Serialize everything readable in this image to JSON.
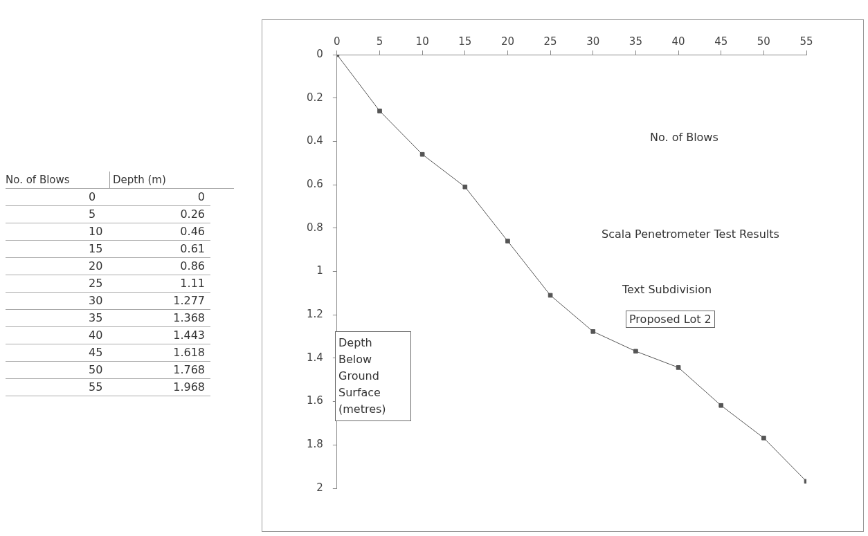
{
  "chart_data": [
    {
      "type": "other",
      "annotations": [
        "No. of Blows",
        "Depth (m)",
        "0 0",
        "5 0.26",
        "10 0.46",
        "15 0.61",
        "20 0.86",
        "25 1.11",
        "30 1.277",
        "35 1.368",
        "40 1.443",
        "45 1.618",
        "50 1.768",
        "55 1.968"
      ]
    },
    {
      "type": "line",
      "xlabel": "No. of Blows",
      "ylabel": "Depth Below Ground Surface (metres)",
      "x": [
        0,
        5,
        10,
        15,
        20,
        25,
        30,
        35,
        40,
        45,
        50,
        55
      ],
      "series": [
        {
          "color": "#555555",
          "values": [
            0,
            0.26,
            0.46,
            0.61,
            0.86,
            1.11,
            1.277,
            1.368,
            1.443,
            1.618,
            1.768,
            1.968
          ]
        }
      ],
      "xlim": [
        0,
        55
      ],
      "xticks": [
        0,
        5,
        10,
        15,
        20,
        25,
        30,
        35,
        40,
        45,
        50,
        55
      ],
      "ylim": [
        2,
        0
      ],
      "yticks": [
        0,
        0.2,
        0.4,
        0.6,
        0.8,
        1,
        1.2,
        1.4,
        1.6,
        1.8,
        2
      ],
      "marker": "square",
      "line_style": "solid",
      "legend": false,
      "annotations": [
        "Scala Penetrometer Test Results",
        "Text Subdivision",
        "Proposed Lot 2"
      ]
    }
  ]
}
